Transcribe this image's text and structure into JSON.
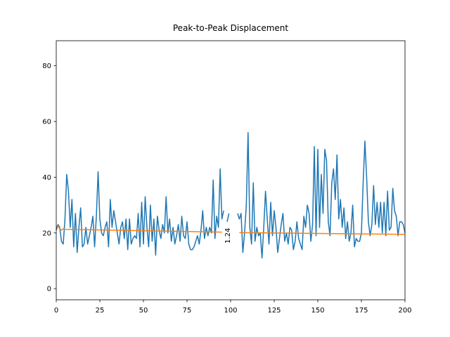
{
  "chart_data": {
    "type": "line",
    "title": "Peak-to-Peak Displacement",
    "xlim": [
      0,
      200
    ],
    "xticks": [
      0,
      25,
      50,
      75,
      100,
      125,
      150,
      175,
      200
    ],
    "ylim": [
      -4,
      89
    ],
    "yticks": [
      0,
      20,
      40,
      60,
      80
    ],
    "annotations": [
      {
        "text": "1.24",
        "x": 99.5,
        "y": 19
      }
    ],
    "series": [
      {
        "color": "#1f77b4",
        "x": [
          0,
          1,
          2,
          3,
          4,
          5,
          6,
          7,
          8,
          9,
          10,
          11,
          12,
          13,
          14,
          15,
          16,
          17,
          18,
          19,
          20,
          21,
          22,
          23,
          24,
          25,
          26,
          27,
          28,
          29,
          30,
          31,
          32,
          33,
          34,
          35,
          36,
          37,
          38,
          39,
          40,
          41,
          42,
          43,
          44,
          45,
          46,
          47,
          48,
          49,
          50,
          51,
          52,
          53,
          54,
          55,
          56,
          57,
          58,
          59,
          60,
          61,
          62,
          63,
          64,
          65,
          66,
          67,
          68,
          69,
          70,
          71,
          72,
          73,
          74,
          75,
          76,
          77,
          78,
          79,
          80,
          81,
          82,
          83,
          84,
          85,
          86,
          87,
          88,
          89,
          90,
          91,
          92,
          93,
          94,
          95,
          96,
          97,
          98,
          99,
          100,
          101,
          102,
          103,
          104,
          105,
          106,
          107,
          108,
          109,
          110,
          111,
          112,
          113,
          114,
          115,
          116,
          117,
          118,
          119,
          120,
          121,
          122,
          123,
          124,
          125,
          126,
          127,
          128,
          129,
          130,
          131,
          132,
          133,
          134,
          135,
          136,
          137,
          138,
          139,
          140,
          141,
          142,
          143,
          144,
          145,
          146,
          147,
          148,
          149,
          150,
          151,
          152,
          153,
          154,
          155,
          156,
          157,
          158,
          159,
          160,
          161,
          162,
          163,
          164,
          165,
          166,
          167,
          168,
          169,
          170,
          171,
          172,
          173,
          174,
          175,
          176,
          177,
          178,
          179,
          180,
          181,
          182,
          183,
          184,
          185,
          186,
          187,
          188,
          189,
          190,
          191,
          192,
          193,
          194,
          195,
          196,
          197,
          198,
          199,
          200
        ],
        "values": [
          21,
          23,
          22,
          17,
          16,
          25,
          41,
          35,
          22,
          32,
          15,
          27,
          13,
          22,
          29,
          15,
          16,
          22,
          16,
          19,
          22,
          26,
          15,
          26,
          42,
          25,
          20,
          19,
          22,
          24,
          15,
          32,
          22,
          28,
          24,
          20,
          16,
          22,
          24,
          18,
          25,
          14,
          25,
          16,
          18,
          19,
          18,
          27,
          15,
          31,
          16,
          33,
          22,
          15,
          30,
          17,
          25,
          12,
          26,
          21,
          18,
          23,
          20,
          33,
          20,
          25,
          17,
          22,
          16,
          19,
          23,
          17,
          26,
          19,
          18,
          24,
          16,
          14,
          14,
          15,
          17,
          19,
          16,
          21,
          28,
          18,
          22,
          19,
          22,
          20,
          39,
          18,
          26,
          22,
          43,
          25,
          28,
          null,
          24,
          27,
          null,
          null,
          null,
          null,
          27,
          25,
          27,
          13,
          20,
          30,
          56,
          22,
          16,
          38,
          17,
          22,
          19,
          20,
          11,
          22,
          35,
          25,
          16,
          31,
          19,
          28,
          22,
          13,
          18,
          23,
          27,
          17,
          20,
          16,
          22,
          21,
          14,
          17,
          24,
          18,
          16,
          14,
          26,
          22,
          30,
          27,
          17,
          23,
          51,
          19,
          50,
          22,
          41,
          27,
          50,
          46,
          24,
          19,
          38,
          43,
          32,
          48,
          25,
          32,
          22,
          29,
          18,
          24,
          17,
          20,
          30,
          15,
          18,
          17,
          17,
          20,
          38,
          53,
          40,
          24,
          19,
          23,
          37,
          23,
          31,
          22,
          31,
          20,
          31,
          19,
          35,
          21,
          22,
          36,
          28,
          26,
          19,
          24,
          24,
          23,
          20
        ]
      },
      {
        "color": "#ff7f0e",
        "x": [
          0,
          1,
          2,
          3,
          4,
          5,
          95,
          100,
          105,
          200
        ],
        "values": [
          22.5,
          22.5,
          21.5,
          21,
          21.5,
          21.3,
          20.3,
          null,
          20.1,
          19.5
        ]
      }
    ]
  }
}
